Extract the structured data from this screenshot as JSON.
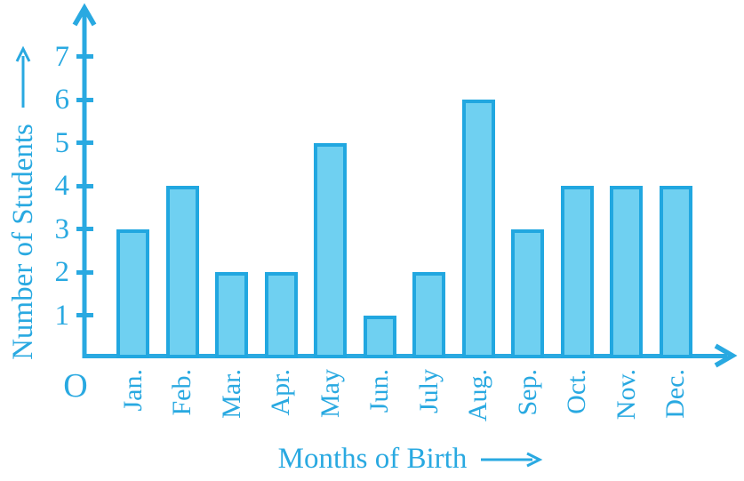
{
  "figure": {
    "origin_label": "O"
  },
  "chart_data": {
    "type": "bar",
    "title": "",
    "categories": [
      "Jan.",
      "Feb.",
      "Mar.",
      "Apr.",
      "May",
      "Jun.",
      "July",
      "Aug.",
      "Sep.",
      "Oct.",
      "Nov.",
      "Dec."
    ],
    "values": [
      3,
      4,
      2,
      2,
      5,
      1,
      2,
      6,
      3,
      4,
      4,
      4
    ],
    "xlabel": "Months of Birth",
    "ylabel": "Number of Students",
    "y_ticks": [
      1,
      2,
      3,
      4,
      5,
      6,
      7
    ],
    "ylim": [
      0,
      8
    ],
    "grid": false,
    "legend": false,
    "colors": {
      "axis": "#29A9E1",
      "text": "#29A9E1",
      "bar_fill": "#6FD0F1",
      "bar_border": "#21A7E0",
      "background": "#FFFFFF"
    }
  }
}
